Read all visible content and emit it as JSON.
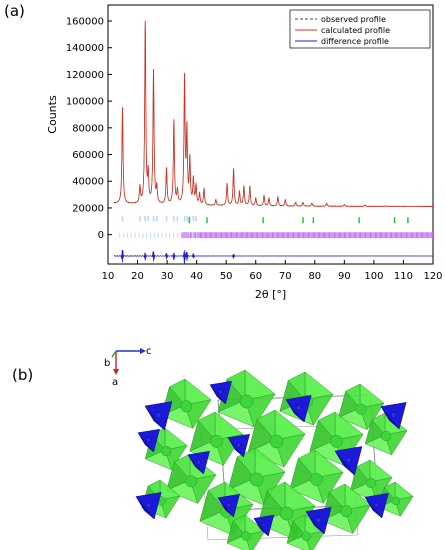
{
  "panels": {
    "a": "(a)",
    "b": "(b)"
  },
  "chart_data": {
    "type": "line",
    "xlabel": "2θ [°]",
    "ylabel": "Counts",
    "xlim": [
      10,
      120
    ],
    "ylim": [
      -22000,
      172000
    ],
    "xticks": [
      10,
      20,
      30,
      40,
      50,
      60,
      70,
      80,
      90,
      100,
      110,
      120
    ],
    "yticks": [
      0,
      20000,
      40000,
      60000,
      80000,
      100000,
      120000,
      140000,
      160000
    ],
    "legend_position": "top-right",
    "legend": [
      "observed profile",
      "calculated profile",
      "difference profile"
    ],
    "background_level": 21000,
    "peaks": [
      {
        "x": 14.9,
        "y": 95000
      },
      {
        "x": 20.8,
        "y": 35000
      },
      {
        "x": 22.6,
        "y": 158000
      },
      {
        "x": 23.6,
        "y": 44000
      },
      {
        "x": 25.4,
        "y": 122000
      },
      {
        "x": 26.5,
        "y": 34000
      },
      {
        "x": 29.8,
        "y": 49000
      },
      {
        "x": 32.3,
        "y": 85000
      },
      {
        "x": 33.5,
        "y": 32000
      },
      {
        "x": 35.9,
        "y": 116000
      },
      {
        "x": 36.7,
        "y": 76000
      },
      {
        "x": 37.7,
        "y": 55000
      },
      {
        "x": 38.9,
        "y": 41000
      },
      {
        "x": 39.8,
        "y": 36000
      },
      {
        "x": 41.0,
        "y": 30000
      },
      {
        "x": 42.5,
        "y": 34000
      },
      {
        "x": 46.5,
        "y": 26000
      },
      {
        "x": 50.3,
        "y": 38000
      },
      {
        "x": 52.5,
        "y": 49000
      },
      {
        "x": 54.5,
        "y": 32000
      },
      {
        "x": 56.0,
        "y": 36000
      },
      {
        "x": 58.0,
        "y": 36000
      },
      {
        "x": 60.0,
        "y": 27000
      },
      {
        "x": 62.8,
        "y": 29000
      },
      {
        "x": 64.5,
        "y": 27000
      },
      {
        "x": 67.5,
        "y": 28000
      },
      {
        "x": 70.0,
        "y": 26000
      },
      {
        "x": 73.5,
        "y": 24000
      },
      {
        "x": 76.0,
        "y": 24000
      },
      {
        "x": 79.0,
        "y": 23500
      },
      {
        "x": 84.0,
        "y": 23500
      },
      {
        "x": 90.0,
        "y": 22500
      },
      {
        "x": 97.0,
        "y": 22000
      },
      {
        "x": 104.0,
        "y": 21500
      },
      {
        "x": 110.0,
        "y": 21000
      }
    ],
    "green_ticks": [
      37.5,
      43.5,
      62.5,
      76.0,
      79.5,
      95.0,
      107.0,
      111.5
    ],
    "purple_tick_range": [
      35,
      120
    ],
    "difference_level": -16000,
    "difference_spikes": [
      {
        "x": 14.9,
        "y": 5000
      },
      {
        "x": 22.6,
        "y": 3000
      },
      {
        "x": 25.4,
        "y": 4000
      },
      {
        "x": 29.8,
        "y": 2500
      },
      {
        "x": 32.3,
        "y": 3000
      },
      {
        "x": 35.9,
        "y": 5500
      },
      {
        "x": 36.7,
        "y": 3500
      },
      {
        "x": 38.9,
        "y": 2000
      },
      {
        "x": 52.5,
        "y": 1500
      }
    ]
  },
  "axes_triad": {
    "c": "c",
    "b": "b",
    "a": "a"
  },
  "colors": {
    "calculated": "#d03020",
    "difference": "#2020d0",
    "green_tick": "#30c030",
    "purple_tick": "#c060f0",
    "tetrahedra": "#1a1ad8",
    "octahedra": "#44e83a"
  }
}
